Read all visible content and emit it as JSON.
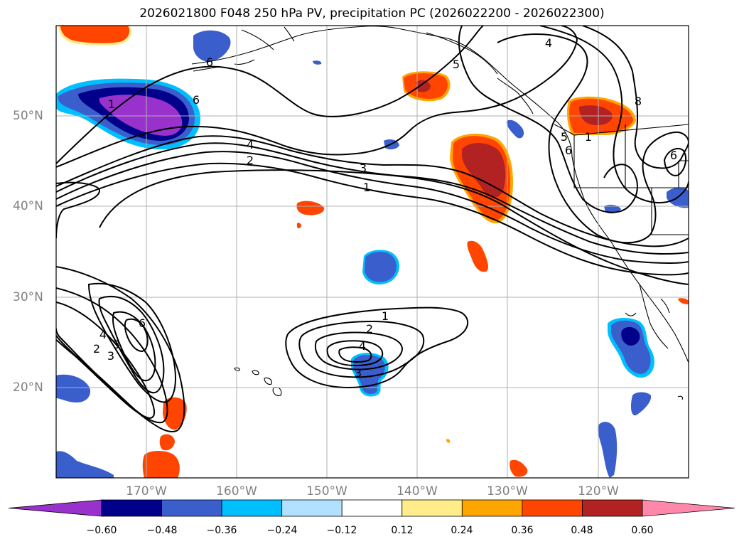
{
  "title": "2026021800 F048 250 hPa PV, precipitation PC (2026022200 - 2026022300)",
  "chart_data": {
    "type": "map",
    "field_lines": "250 hPa PV (PVU)",
    "field_shaded": "precipitation PC",
    "lat_ticks": [
      "50°N",
      "40°N",
      "30°N",
      "20°N"
    ],
    "lon_ticks": [
      "170°W",
      "160°W",
      "150°W",
      "140°W",
      "130°W",
      "120°W"
    ],
    "extent": {
      "lon_min": -180,
      "lon_max": -110,
      "lat_min": 10,
      "lat_max": 60
    },
    "contour_labels": [
      "6",
      "6",
      "1",
      "4",
      "2",
      "3",
      "1",
      "5",
      "4",
      "8",
      "6",
      "6",
      "1",
      "2",
      "4",
      "3",
      "6",
      "4",
      "3",
      "3",
      "2",
      "1",
      "5"
    ],
    "colorbar": {
      "ticks": [
        "−0.60",
        "−0.48",
        "−0.36",
        "−0.24",
        "−0.12",
        "0.12",
        "0.24",
        "0.36",
        "0.48",
        "0.60"
      ],
      "colors": [
        "#9932cc",
        "#00008b",
        "#3a5fcd",
        "#00bfff",
        "#b0e2ff",
        "#ffffff",
        "#ffec8b",
        "#ffa500",
        "#ff4500",
        "#b22222",
        "#ff88aa"
      ]
    }
  }
}
